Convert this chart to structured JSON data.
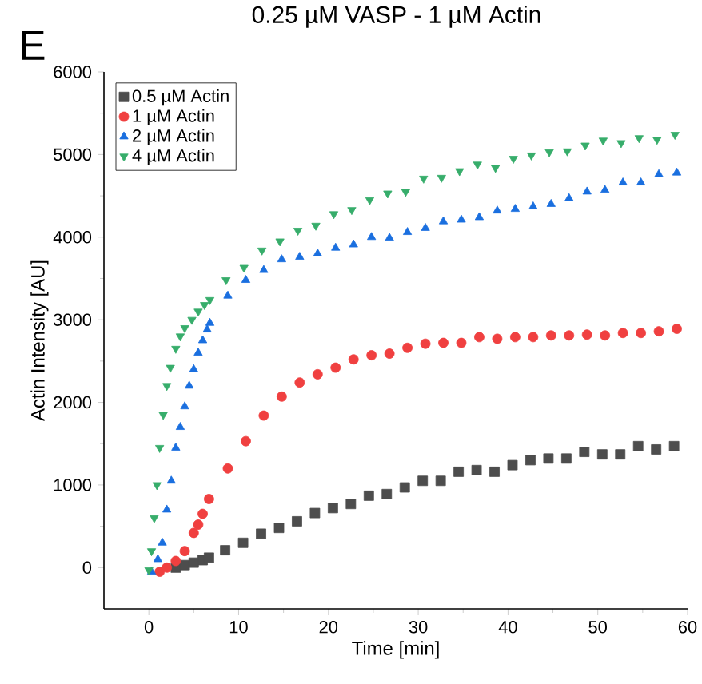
{
  "chart_data": {
    "type": "scatter",
    "title": "0.25 µM VASP - 1 µM Actin",
    "annotations": [
      "E"
    ],
    "xlabel": "Time [min]",
    "ylabel": "Actin Intensity [AU]",
    "xlim": [
      -5,
      60
    ],
    "ylim": [
      -500,
      6000
    ],
    "xticks": [
      0,
      10,
      20,
      30,
      40,
      50,
      60
    ],
    "yticks": [
      0,
      1000,
      2000,
      3000,
      4000,
      5000,
      6000
    ],
    "grid": false,
    "legend": "top left",
    "series": [
      {
        "name": "0.5 µM Actin",
        "color": "#4d4d4d",
        "marker": "square",
        "x": [
          3,
          4,
          5,
          6,
          6.7,
          8.5,
          10.5,
          12.5,
          14.5,
          16.5,
          18.5,
          20.5,
          22.5,
          24.5,
          26.5,
          28.5,
          30.5,
          32.5,
          34.5,
          36.5,
          38.5,
          40.5,
          42.5,
          44.5,
          46.5,
          48.5,
          50.5,
          52.5,
          54.5,
          56.5,
          58.5
        ],
        "values": [
          0,
          30,
          60,
          90,
          120,
          210,
          300,
          410,
          480,
          560,
          660,
          720,
          770,
          870,
          890,
          970,
          1050,
          1050,
          1160,
          1180,
          1160,
          1240,
          1300,
          1320,
          1320,
          1400,
          1370,
          1370,
          1470,
          1430,
          1470
        ]
      },
      {
        "name": "1 µM Actin",
        "color": "#f04040",
        "marker": "circle",
        "x": [
          1.2,
          2,
          3,
          4,
          5,
          5.5,
          6,
          6.7,
          8.8,
          10.8,
          12.8,
          14.8,
          16.8,
          18.8,
          20.8,
          22.8,
          24.8,
          26.8,
          28.8,
          30.8,
          32.8,
          34.8,
          36.8,
          38.8,
          40.8,
          42.8,
          44.8,
          46.8,
          48.8,
          50.8,
          52.8,
          54.8,
          56.8,
          58.8
        ],
        "values": [
          -50,
          0,
          80,
          200,
          420,
          520,
          650,
          830,
          1200,
          1530,
          1840,
          2070,
          2240,
          2340,
          2420,
          2520,
          2570,
          2590,
          2660,
          2710,
          2720,
          2720,
          2790,
          2770,
          2790,
          2790,
          2810,
          2810,
          2820,
          2810,
          2840,
          2840,
          2860,
          2890
        ]
      },
      {
        "name": "2 µM Actin",
        "color": "#1a6fdf",
        "marker": "triangle",
        "x": [
          0.3,
          1,
          1.5,
          2,
          2.5,
          3,
          3.5,
          4,
          4.5,
          5,
          5.5,
          6,
          6.5,
          6.8,
          8.8,
          10.8,
          12.8,
          14.8,
          16.8,
          18.8,
          20.8,
          22.8,
          24.8,
          26.8,
          28.8,
          30.8,
          32.8,
          34.8,
          36.8,
          38.8,
          40.8,
          42.8,
          44.8,
          46.8,
          48.8,
          50.8,
          52.8,
          54.8,
          56.8,
          58.8
        ],
        "values": [
          -50,
          100,
          300,
          700,
          1050,
          1450,
          1700,
          1950,
          2200,
          2400,
          2600,
          2750,
          2880,
          2960,
          3290,
          3480,
          3600,
          3730,
          3760,
          3800,
          3870,
          3910,
          4000,
          3990,
          4060,
          4110,
          4190,
          4210,
          4240,
          4320,
          4340,
          4370,
          4400,
          4470,
          4550,
          4570,
          4660,
          4660,
          4760,
          4780
        ]
      },
      {
        "name": "4 µM Actin",
        "color": "#37ad6b",
        "marker": "triangle-down",
        "x": [
          0,
          0.3,
          0.6,
          0.9,
          1.2,
          1.6,
          2,
          2.4,
          3,
          3.5,
          4,
          4.8,
          5.5,
          6.2,
          6.8,
          8.6,
          10.6,
          12.6,
          14.6,
          16.6,
          18.6,
          20.6,
          22.6,
          24.6,
          26.6,
          28.6,
          30.6,
          32.6,
          34.6,
          36.6,
          38.6,
          40.6,
          42.6,
          44.6,
          46.6,
          48.6,
          50.6,
          52.6,
          54.6,
          56.6,
          58.6
        ],
        "values": [
          -30,
          200,
          600,
          1000,
          1450,
          1850,
          2200,
          2420,
          2650,
          2800,
          2900,
          3000,
          3100,
          3180,
          3240,
          3480,
          3630,
          3840,
          3950,
          4080,
          4140,
          4280,
          4330,
          4450,
          4530,
          4550,
          4710,
          4720,
          4800,
          4880,
          4840,
          4950,
          4990,
          5030,
          5040,
          5110,
          5170,
          5140,
          5200,
          5180,
          5240
        ]
      }
    ]
  }
}
